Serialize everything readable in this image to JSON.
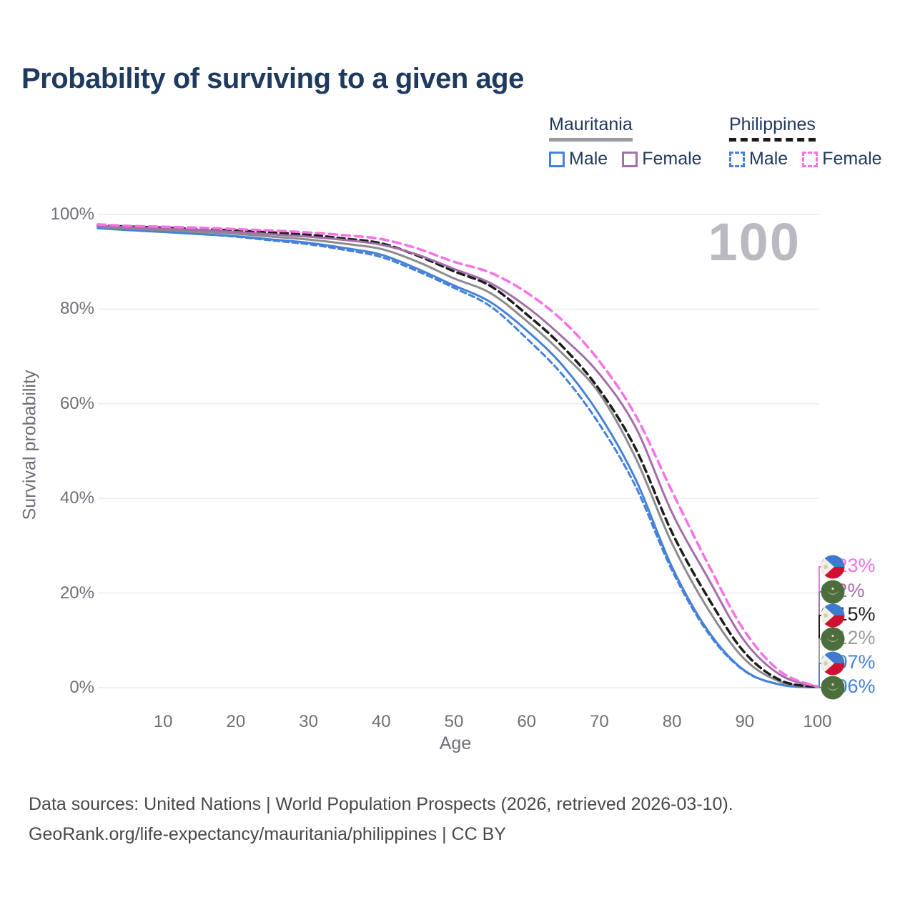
{
  "title": "Probability of surviving to a given age",
  "watermark": "100",
  "legend": {
    "groups": [
      {
        "name": "Mauritania",
        "sample_style": "solid-gray",
        "items": [
          {
            "label": "Male",
            "swatch": "solid-blue"
          },
          {
            "label": "Female",
            "swatch": "solid-purple"
          }
        ]
      },
      {
        "name": "Philippines",
        "sample_style": "dashed-black",
        "items": [
          {
            "label": "Male",
            "swatch": "dash-blue"
          },
          {
            "label": "Female",
            "swatch": "dash-pink"
          }
        ]
      }
    ]
  },
  "chart_data": {
    "type": "line",
    "title": "Probability of surviving to a given age",
    "xlabel": "Age",
    "ylabel": "Survival probability",
    "xlim": [
      1,
      100
    ],
    "ylim": [
      0,
      100
    ],
    "x_ticks": [
      10,
      20,
      30,
      40,
      50,
      60,
      70,
      80,
      90,
      100
    ],
    "y_ticks": [
      "0%",
      "20%",
      "40%",
      "60%",
      "80%",
      "100%"
    ],
    "grid": "horizontal",
    "legend_position": "top-right",
    "frame_counter": "100",
    "x": [
      1,
      5,
      10,
      15,
      20,
      25,
      30,
      35,
      40,
      45,
      50,
      55,
      60,
      65,
      70,
      75,
      80,
      85,
      90,
      95,
      100
    ],
    "series": [
      {
        "name": "Mauritania Male",
        "country": "mauritania",
        "sex": "male",
        "color": "#4681d8",
        "dash": "solid",
        "width": 3,
        "values": [
          97.1,
          96.7,
          96.3,
          95.85,
          95.4,
          94.7,
          94.0,
          92.9,
          91.5,
          88.5,
          85.0,
          81.5,
          75.5,
          68.0,
          57.7,
          44.0,
          25.5,
          11.9,
          3.6,
          0.6,
          0.06
        ],
        "end_label": "0.06%"
      },
      {
        "name": "Philippines Male",
        "country": "philippines",
        "sex": "male",
        "color": "#4681d8",
        "dash": "8 5",
        "width": 3,
        "values": [
          97.3,
          96.9,
          96.5,
          95.9,
          95.3,
          94.5,
          93.7,
          92.5,
          91.0,
          88.0,
          84.5,
          80.6,
          73.8,
          66.0,
          55.7,
          42.5,
          24.8,
          11.5,
          3.5,
          0.65,
          0.07
        ],
        "end_label": "0.07%"
      },
      {
        "name": "Mauritania Both sexes",
        "country": "mauritania",
        "sex": "total",
        "color": "#8c8c8c",
        "dash": "solid",
        "width": 3,
        "values": [
          97.4,
          97.05,
          96.7,
          96.3,
          95.9,
          95.3,
          94.7,
          93.8,
          92.7,
          90.0,
          86.5,
          83.4,
          77.5,
          70.5,
          62.2,
          48.5,
          30.5,
          16.5,
          6.0,
          1.2,
          0.12
        ],
        "end_label": "0.12%"
      },
      {
        "name": "Philippines Both sexes",
        "country": "philippines",
        "sex": "total",
        "color": "#1c1c1c",
        "dash": "10 6",
        "width": 3.5,
        "values": [
          97.7,
          97.45,
          97.2,
          96.9,
          96.6,
          96.2,
          95.7,
          94.9,
          93.9,
          91.3,
          88.0,
          84.9,
          78.9,
          72.0,
          63.0,
          50.5,
          32.8,
          18.9,
          7.4,
          1.5,
          0.15
        ],
        "end_label": "0.15%"
      },
      {
        "name": "Mauritania Female",
        "country": "mauritania",
        "sex": "female",
        "color": "#a26fa8",
        "dash": "solid",
        "width": 3,
        "values": [
          97.6,
          97.3,
          97.0,
          96.7,
          96.3,
          95.8,
          95.3,
          94.6,
          93.6,
          91.5,
          88.5,
          85.5,
          80.5,
          74.0,
          66.3,
          55.0,
          37.0,
          23.0,
          9.8,
          2.6,
          0.2
        ],
        "end_label": "0.2%"
      },
      {
        "name": "Philippines Female",
        "country": "philippines",
        "sex": "female",
        "color": "#fa70e6",
        "dash": "11 7",
        "width": 3.5,
        "values": [
          97.9,
          97.6,
          97.4,
          97.2,
          96.9,
          96.6,
          96.2,
          95.6,
          94.8,
          92.8,
          90.0,
          87.7,
          83.5,
          77.5,
          69.0,
          57.5,
          41.5,
          26.0,
          11.9,
          3.3,
          0.23
        ],
        "end_label": "0.23%"
      }
    ],
    "end_labels": [
      {
        "value": "0.23%",
        "flag": "philippines",
        "color": "#fa70e6"
      },
      {
        "value": "0.2%",
        "flag": "mauritania",
        "color": "#a26fa8"
      },
      {
        "value": "0.15%",
        "flag": "philippines",
        "color": "#1c1c1c"
      },
      {
        "value": "0.12%",
        "flag": "mauritania",
        "color": "#9b9b9b"
      },
      {
        "value": "0.07%",
        "flag": "philippines",
        "color": "#4681d8"
      },
      {
        "value": "0.06%",
        "flag": "mauritania",
        "color": "#4681d8"
      }
    ]
  },
  "footer": {
    "line1": "Data sources: United Nations | World Population Prospects (2026, retrieved 2026-03-10).",
    "line2": "GeoRank.org/life-expectancy/mauritania/philippines | CC BY"
  },
  "colors": {
    "title": "#1e3a5e",
    "legend_text": "#213a5c",
    "mauritania_sample": "#9a9aa1",
    "philippines_sample": "#1c1c1c",
    "male_blue": "#4681d8",
    "female_purple": "#a26fa8",
    "female_pink": "#fa70e6",
    "gridline": "#ebebee",
    "tick_text": "#6e6f78",
    "watermark": "#b9bac1",
    "footer_text": "#47484d"
  }
}
